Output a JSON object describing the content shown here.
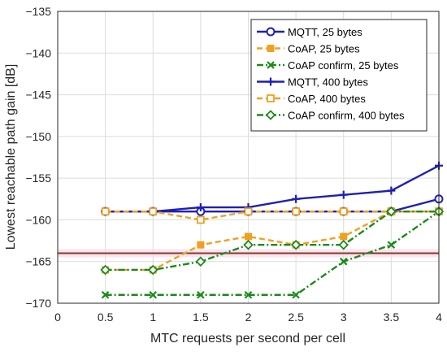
{
  "chart_data": {
    "type": "line",
    "xlabel": "MTC requests per second per cell",
    "ylabel": "Lowest reachable path gain [dB]",
    "xlim": [
      0,
      4
    ],
    "ylim": [
      -170,
      -135
    ],
    "xticks": [
      0,
      0.5,
      1,
      1.5,
      2,
      2.5,
      3,
      3.5,
      4
    ],
    "yticks": [
      -135,
      -140,
      -145,
      -150,
      -155,
      -160,
      -165,
      -170
    ],
    "grid": true,
    "legend_position": "top-right",
    "reference_line": {
      "y": -164,
      "color": "#8b3a1a"
    },
    "x": [
      0.5,
      1,
      1.5,
      2,
      2.5,
      3,
      3.5,
      4
    ],
    "series": [
      {
        "name": "MQTT, 25 bytes",
        "values": [
          -159,
          -159,
          -159,
          -159,
          -159,
          -159,
          -159,
          -157.5
        ],
        "color": "#1f1fb4",
        "dash": "solid",
        "marker": "circle"
      },
      {
        "name": "CoAP, 25 bytes",
        "values": [
          -166,
          -166,
          -163,
          -162,
          -163,
          -162,
          -159,
          -159
        ],
        "color": "#f0a020",
        "dash": "dash",
        "marker": "square-filled"
      },
      {
        "name": "CoAP confirm, 25 bytes",
        "values": [
          -169,
          -169,
          -169,
          -169,
          -169,
          -165,
          -163,
          -159
        ],
        "color": "#1a8a1a",
        "dash": "dashdot",
        "marker": "x"
      },
      {
        "name": "MQTT, 400 bytes",
        "values": [
          -159,
          -159,
          -158.5,
          -158.5,
          -157.5,
          -157,
          -156.5,
          -153.5
        ],
        "color": "#1f1fb4",
        "dash": "solid",
        "marker": "plus"
      },
      {
        "name": "CoAP, 400 bytes",
        "values": [
          -159,
          -159,
          -160,
          -159,
          -159,
          -159,
          -159,
          -159
        ],
        "color": "#f0a020",
        "dash": "dash",
        "marker": "square-open"
      },
      {
        "name": "CoAP confirm, 400 bytes",
        "values": [
          -166,
          -166,
          -165,
          -163,
          -163,
          -163,
          -159,
          -159
        ],
        "color": "#1a8a1a",
        "dash": "dashdot",
        "marker": "diamond"
      }
    ]
  }
}
